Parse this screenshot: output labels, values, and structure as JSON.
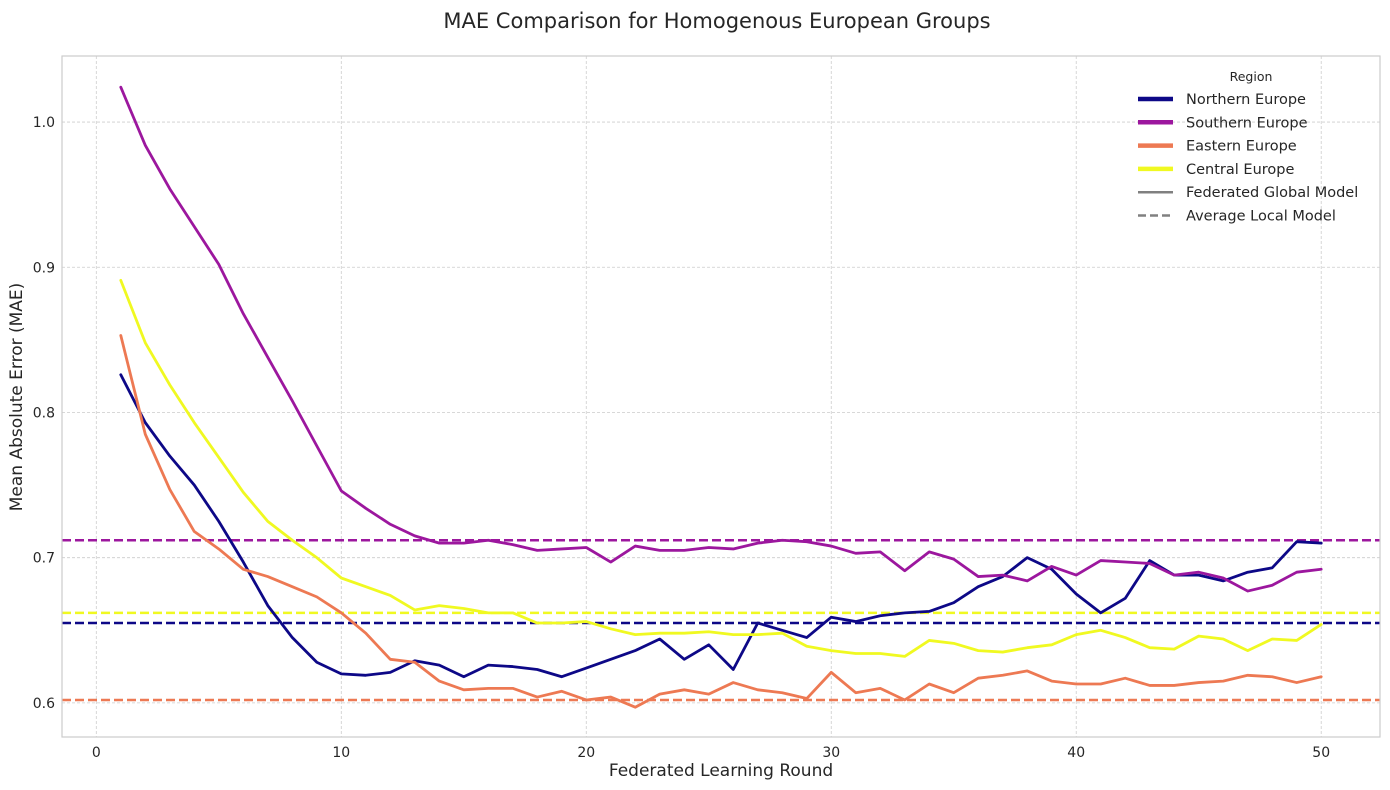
{
  "chart_data": {
    "type": "line",
    "title": "MAE Comparison for Homogenous European Groups",
    "xlabel": "Federated Learning Round",
    "ylabel": "Mean Absolute Error (MAE)",
    "xlim": [
      -1.4,
      52.4
    ],
    "ylim": [
      0.5765,
      1.0455
    ],
    "x_ticks": [
      0,
      10,
      20,
      30,
      40,
      50
    ],
    "y_ticks": [
      0.6,
      0.7,
      0.8,
      0.9,
      1.0
    ],
    "x_tick_labels": [
      "0",
      "10",
      "20",
      "30",
      "40",
      "50"
    ],
    "y_tick_labels": [
      "0.6",
      "0.7",
      "0.8",
      "0.9",
      "1.0"
    ],
    "grid": true,
    "legend": {
      "title": "Region",
      "placement": "top-right",
      "entries": [
        {
          "label": "Northern Europe",
          "color": "#0d0887",
          "style": "solid"
        },
        {
          "label": "Southern Europe",
          "color": "#9c179e",
          "style": "solid"
        },
        {
          "label": "Eastern Europe",
          "color": "#ed7953",
          "style": "solid"
        },
        {
          "label": "Central Europe",
          "color": "#f0f921",
          "style": "solid"
        },
        {
          "label": "Federated Global Model",
          "color": "#808080",
          "style": "solid"
        },
        {
          "label": "Average Local Model",
          "color": "#808080",
          "style": "dashed"
        }
      ]
    },
    "x": [
      1,
      2,
      3,
      4,
      5,
      6,
      7,
      8,
      9,
      10,
      11,
      12,
      13,
      14,
      15,
      16,
      17,
      18,
      19,
      20,
      21,
      22,
      23,
      24,
      25,
      26,
      27,
      28,
      29,
      30,
      31,
      32,
      33,
      34,
      35,
      36,
      37,
      38,
      39,
      40,
      41,
      42,
      43,
      44,
      45,
      46,
      47,
      48,
      49,
      50
    ],
    "series": [
      {
        "name": "Northern Europe",
        "color": "#0d0887",
        "values": [
          0.826,
          0.793,
          0.77,
          0.75,
          0.725,
          0.697,
          0.667,
          0.645,
          0.628,
          0.62,
          0.619,
          0.621,
          0.629,
          0.626,
          0.618,
          0.626,
          0.625,
          0.623,
          0.618,
          0.624,
          0.63,
          0.636,
          0.644,
          0.63,
          0.64,
          0.623,
          0.655,
          0.65,
          0.645,
          0.659,
          0.656,
          0.66,
          0.662,
          0.663,
          0.669,
          0.68,
          0.687,
          0.7,
          0.692,
          0.675,
          0.662,
          0.672,
          0.698,
          0.688,
          0.688,
          0.684,
          0.69,
          0.693,
          0.711,
          0.71
        ]
      },
      {
        "name": "Southern Europe",
        "color": "#9c179e",
        "values": [
          1.024,
          0.984,
          0.954,
          0.928,
          0.902,
          0.868,
          0.838,
          0.808,
          0.777,
          0.746,
          0.734,
          0.723,
          0.715,
          0.71,
          0.71,
          0.712,
          0.709,
          0.705,
          0.706,
          0.707,
          0.697,
          0.708,
          0.705,
          0.705,
          0.707,
          0.706,
          0.71,
          0.712,
          0.711,
          0.708,
          0.703,
          0.704,
          0.691,
          0.704,
          0.699,
          0.687,
          0.688,
          0.684,
          0.694,
          0.688,
          0.698,
          0.697,
          0.696,
          0.688,
          0.69,
          0.686,
          0.677,
          0.681,
          0.69,
          0.692
        ]
      },
      {
        "name": "Eastern Europe",
        "color": "#ed7953",
        "values": [
          0.853,
          0.785,
          0.747,
          0.718,
          0.706,
          0.692,
          0.687,
          0.68,
          0.673,
          0.662,
          0.648,
          0.63,
          0.628,
          0.615,
          0.609,
          0.61,
          0.61,
          0.604,
          0.608,
          0.602,
          0.604,
          0.597,
          0.606,
          0.609,
          0.606,
          0.614,
          0.609,
          0.607,
          0.603,
          0.621,
          0.607,
          0.61,
          0.602,
          0.613,
          0.607,
          0.617,
          0.619,
          0.622,
          0.615,
          0.613,
          0.613,
          0.617,
          0.612,
          0.612,
          0.614,
          0.615,
          0.619,
          0.618,
          0.614,
          0.618
        ]
      },
      {
        "name": "Central Europe",
        "color": "#f0f921",
        "values": [
          0.891,
          0.848,
          0.819,
          0.793,
          0.769,
          0.745,
          0.725,
          0.712,
          0.7,
          0.686,
          0.68,
          0.674,
          0.664,
          0.667,
          0.665,
          0.662,
          0.662,
          0.655,
          0.655,
          0.656,
          0.651,
          0.647,
          0.648,
          0.648,
          0.649,
          0.647,
          0.647,
          0.648,
          0.639,
          0.636,
          0.634,
          0.634,
          0.632,
          0.643,
          0.641,
          0.636,
          0.635,
          0.638,
          0.64,
          0.647,
          0.65,
          0.645,
          0.638,
          0.637,
          0.646,
          0.644,
          0.636,
          0.644,
          0.643,
          0.654
        ]
      }
    ],
    "reference_lines": [
      {
        "name": "Southern Europe",
        "color": "#9c179e",
        "y": 0.712,
        "style": "dashed"
      },
      {
        "name": "Central Europe",
        "color": "#f0f921",
        "y": 0.662,
        "style": "dashed"
      },
      {
        "name": "Northern Europe",
        "color": "#0d0887",
        "y": 0.655,
        "style": "dashed"
      },
      {
        "name": "Eastern Europe",
        "color": "#ed7953",
        "y": 0.602,
        "style": "dashed"
      }
    ]
  }
}
